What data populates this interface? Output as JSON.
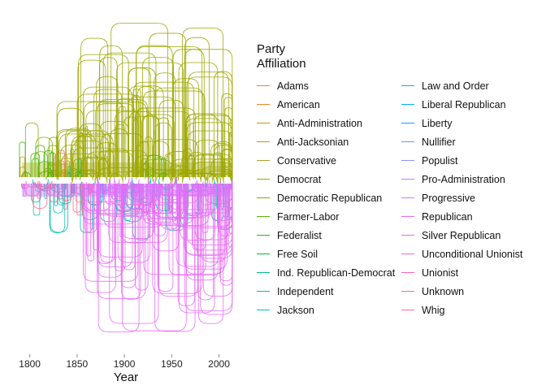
{
  "chart_data": {
    "type": "line",
    "xlabel": "Year",
    "xlim": [
      1790,
      2015
    ],
    "xticks": [
      1800,
      1850,
      1900,
      1950,
      2000
    ],
    "grid": false,
    "legend_title": "Party\nAffiliation",
    "legend_position": "right",
    "series": [
      {
        "name": "Adams",
        "color": "#F8766D",
        "start": 1825,
        "end": 1840,
        "max_arc": 0.45
      },
      {
        "name": "American",
        "color": "#E7861B",
        "start": 1855,
        "end": 1860,
        "max_arc": 0.2
      },
      {
        "name": "Anti-Administration",
        "color": "#D89000",
        "start": 1789,
        "end": 1796,
        "max_arc": 0.25
      },
      {
        "name": "Anti-Jacksonian",
        "color": "#C49A00",
        "start": 1830,
        "end": 1838,
        "max_arc": 0.35
      },
      {
        "name": "Conservative",
        "color": "#B0A22D",
        "start": 1836,
        "end": 1842,
        "max_arc": 0.3
      },
      {
        "name": "Democrat",
        "color": "#9DA700",
        "start": 1828,
        "end": 2014,
        "max_arc": 1.0
      },
      {
        "name": "Democratic Republican",
        "color": "#7CAE00",
        "start": 1792,
        "end": 1830,
        "max_arc": 0.5
      },
      {
        "name": "Farmer-Labor",
        "color": "#5BB300",
        "start": 1920,
        "end": 1944,
        "max_arc": 0.3
      },
      {
        "name": "Federalist",
        "color": "#39B600",
        "start": 1789,
        "end": 1825,
        "max_arc": 0.45
      },
      {
        "name": "Free Soil",
        "color": "#00BA38",
        "start": 1848,
        "end": 1854,
        "max_arc": 0.25
      },
      {
        "name": "Ind. Republican-Democrat",
        "color": "#00BF7D",
        "start": 1840,
        "end": 1843,
        "max_arc": 0.15
      },
      {
        "name": "Independent",
        "color": "#00C0AF",
        "start": 1800,
        "end": 2014,
        "max_arc": 0.45
      },
      {
        "name": "Jackson",
        "color": "#00BFC4",
        "start": 1825,
        "end": 1838,
        "max_arc": 0.4
      },
      {
        "name": "Law and Order",
        "color": "#00BCD8",
        "start": 1843,
        "end": 1846,
        "max_arc": 0.15
      },
      {
        "name": "Liberal Republican",
        "color": "#00B4EF",
        "start": 1872,
        "end": 1877,
        "max_arc": 0.25
      },
      {
        "name": "Liberty",
        "color": "#00A9FF",
        "start": 1844,
        "end": 1847,
        "max_arc": 0.15
      },
      {
        "name": "Nullifier",
        "color": "#619CFF",
        "start": 1831,
        "end": 1839,
        "max_arc": 0.3
      },
      {
        "name": "Populist",
        "color": "#8F91FF",
        "start": 1891,
        "end": 1903,
        "max_arc": 0.35
      },
      {
        "name": "Pro-Administration",
        "color": "#B983FF",
        "start": 1789,
        "end": 1796,
        "max_arc": 0.25
      },
      {
        "name": "Progressive",
        "color": "#D575FE",
        "start": 1912,
        "end": 1920,
        "max_arc": 0.3
      },
      {
        "name": "Republican",
        "color": "#E76BF3",
        "start": 1854,
        "end": 2014,
        "max_arc": 1.0
      },
      {
        "name": "Silver Republican",
        "color": "#F564E3",
        "start": 1896,
        "end": 1903,
        "max_arc": 0.25
      },
      {
        "name": "Unconditional Unionist",
        "color": "#FD61D1",
        "start": 1862,
        "end": 1866,
        "max_arc": 0.15
      },
      {
        "name": "Unionist",
        "color": "#FF65AE",
        "start": 1861,
        "end": 1865,
        "max_arc": 0.15
      },
      {
        "name": "Unknown",
        "color": "#FF6C91",
        "start": 1790,
        "end": 1830,
        "max_arc": 0.2
      },
      {
        "name": "Whig",
        "color": "#FF6C91",
        "start": 1834,
        "end": 1856,
        "max_arc": 0.45
      }
    ]
  }
}
